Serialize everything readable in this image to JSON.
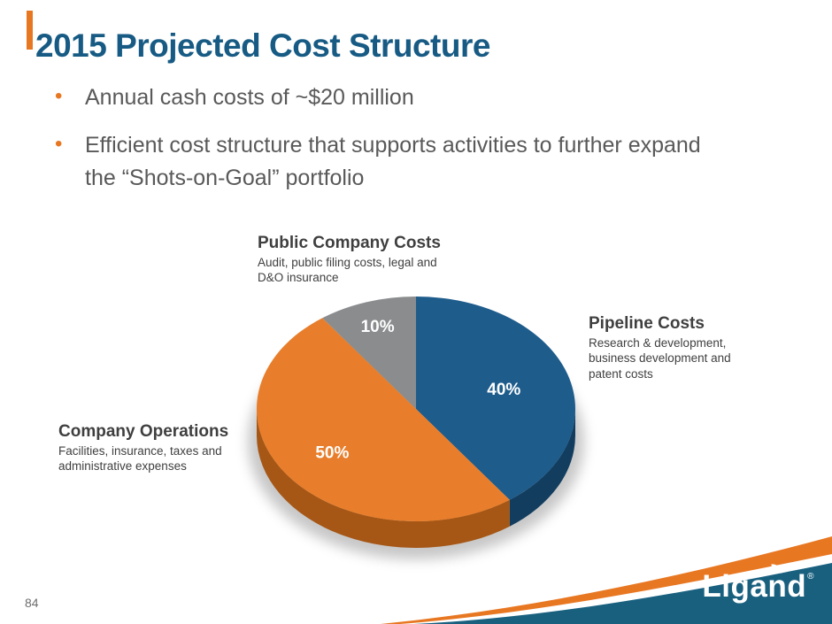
{
  "slide": {
    "title": "2015 Projected Cost Structure",
    "bullet_char": "•",
    "bullets": [
      "Annual cash costs of ~$20 million",
      "Efficient cost structure that supports activities to further expand the “Shots-on-Goal” portfolio"
    ],
    "page_number": "84"
  },
  "colors": {
    "title": "#175B84",
    "accent_orange": "#E87722",
    "swoosh_teal": "#19607F",
    "body_text": "#595959",
    "callout_text": "#3F3F3F"
  },
  "chart_data": {
    "type": "pie",
    "start_angle_deg": 0,
    "total": 100,
    "legend_position": "callouts-around-pie",
    "slices": [
      {
        "id": "pipeline-costs",
        "label": "Pipeline Costs",
        "description": "Research & development, business development and patent costs",
        "value": 40,
        "pct_label": "40%",
        "color": "#1E5C8C",
        "side_color": "#123D5F",
        "label_radius": 0.58
      },
      {
        "id": "company-operations",
        "label": "Company Operations",
        "description": "Facilities, insurance, taxes and administrative expenses",
        "value": 50,
        "pct_label": "50%",
        "color": "#E87E2B",
        "side_color": "#A65615",
        "label_radius": 0.65
      },
      {
        "id": "public-company-costs",
        "label": "Public Company Costs",
        "description": "Audit, public filing costs, legal and D&O insurance",
        "value": 10,
        "pct_label": "10%",
        "color": "#8A8C8E",
        "side_color": "#5F6062",
        "label_radius": 0.78
      }
    ]
  },
  "logo": {
    "text": "Ligand",
    "registered": "®"
  }
}
